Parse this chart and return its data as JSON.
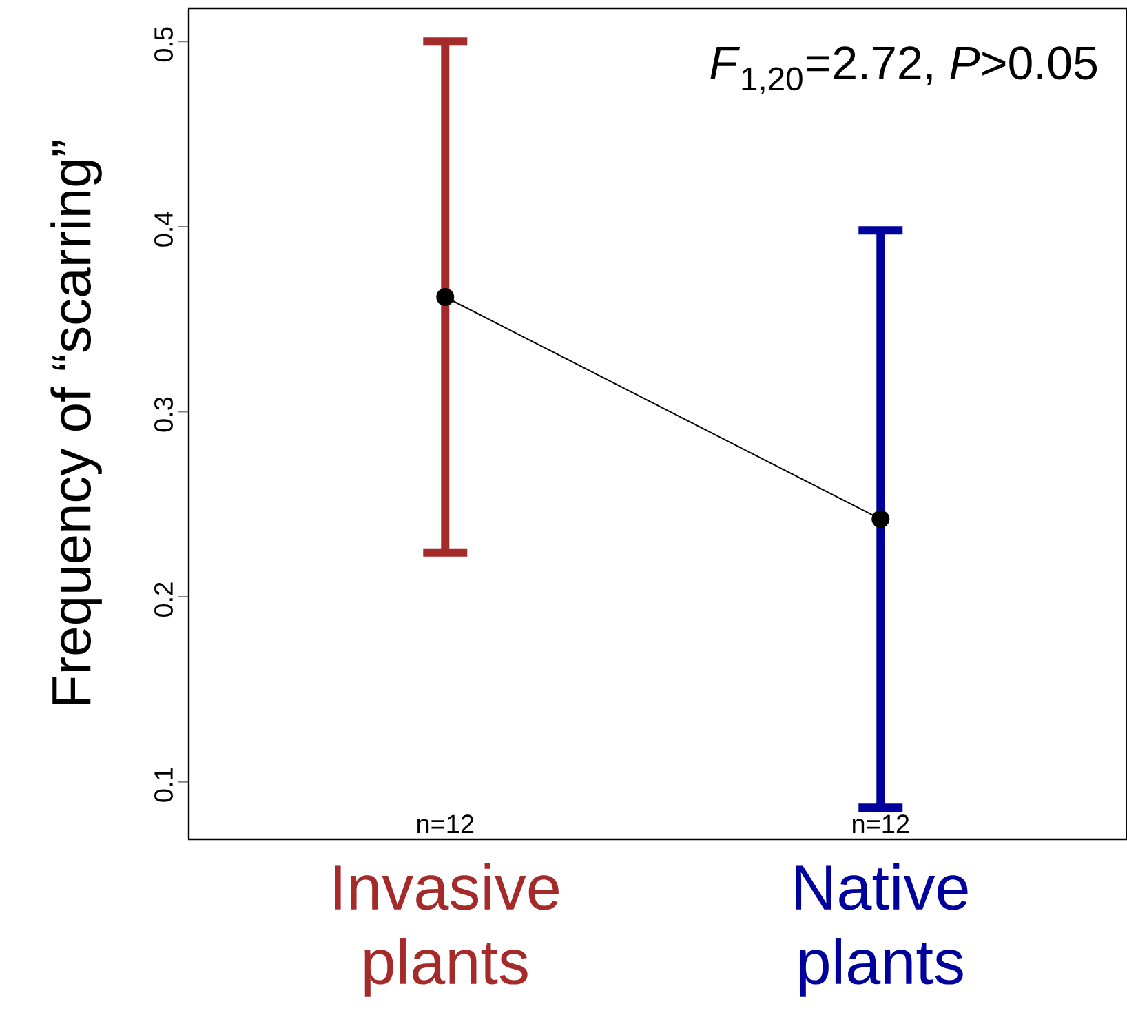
{
  "chart_data": {
    "type": "line",
    "categories": [
      "Invasive plants",
      "Native plants"
    ],
    "colors": [
      "#a52a2a",
      "#00009c"
    ],
    "series": [
      {
        "color": "#000000",
        "values": [
          0.362,
          0.242
        ],
        "errors": [
          [
            0.224,
            0.5
          ],
          [
            0.086,
            0.398
          ]
        ]
      }
    ],
    "ylabel": "Frequency of “scarring”",
    "ylim": [
      0.069,
      0.518
    ],
    "yticks": [
      0.1,
      0.2,
      0.3,
      0.4,
      0.5
    ],
    "marker": "circle",
    "line_style": "solid",
    "grid": false,
    "annotations": [
      "*F*$_{1,20}$=2.72, *P*>0.05",
      "n=12",
      "n=12"
    ]
  }
}
